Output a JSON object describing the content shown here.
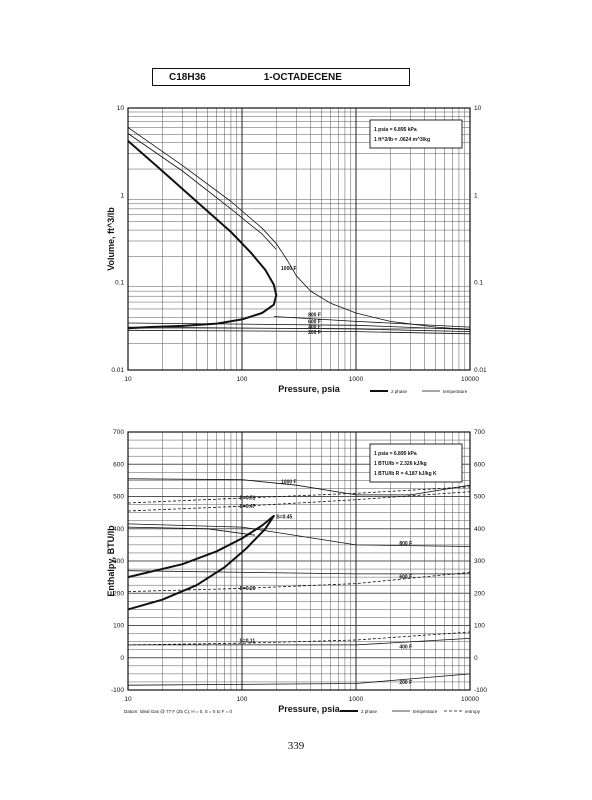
{
  "header": {
    "formula": "C18H36",
    "name": "1-OCTADECENE"
  },
  "page_number": "339",
  "chart_data": [
    {
      "type": "line",
      "title": "",
      "xlabel": "Pressure,  psia",
      "ylabel": "Volume, ft^3/lb",
      "xscale": "log",
      "yscale": "log",
      "xlim": [
        10,
        10000
      ],
      "ylim": [
        0.01,
        10
      ],
      "x_ticks": [
        "10",
        "100",
        "1000",
        "10000"
      ],
      "y_ticks": [
        "10",
        "1",
        "0.1",
        "0.01"
      ],
      "grid": true,
      "info_box": [
        "1 psia  =  6.895 kPa",
        "1 ft^3/lb  =  .0624 m^3/kg"
      ],
      "legend": [
        {
          "label": "2 phase",
          "style": "thick"
        },
        {
          "label": "temperature",
          "style": "thin"
        }
      ],
      "legend_position": "bottom-right",
      "series": [
        {
          "name": "2 phase",
          "style": "thick",
          "x": [
            10,
            20,
            40,
            80,
            120,
            160,
            190,
            200,
            190,
            150,
            100,
            60,
            30,
            15,
            10
          ],
          "y": [
            4.2,
            1.9,
            0.85,
            0.38,
            0.22,
            0.14,
            0.095,
            0.072,
            0.056,
            0.045,
            0.038,
            0.034,
            0.032,
            0.031,
            0.03
          ]
        },
        {
          "name": "1000 F",
          "style": "thin",
          "x": [
            10,
            30,
            80,
            150,
            200,
            250,
            300,
            400,
            600,
            1000,
            2000,
            5000,
            10000
          ],
          "y": [
            6.0,
            2.2,
            0.85,
            0.42,
            0.28,
            0.18,
            0.12,
            0.08,
            0.058,
            0.045,
            0.036,
            0.031,
            0.029
          ]
        },
        {
          "name": "",
          "style": "thin",
          "x": [
            10,
            30,
            80,
            150,
            200
          ],
          "y": [
            5.1,
            1.9,
            0.7,
            0.36,
            0.24
          ]
        },
        {
          "name": "800 F",
          "style": "thin",
          "x": [
            190,
            1000,
            10000
          ],
          "y": [
            0.041,
            0.036,
            0.031
          ]
        },
        {
          "name": "600 F",
          "style": "thin",
          "x": [
            10,
            1000,
            10000
          ],
          "y": [
            0.0345,
            0.0325,
            0.029
          ]
        },
        {
          "name": "400 F",
          "style": "thin",
          "x": [
            10,
            1000,
            10000
          ],
          "y": [
            0.031,
            0.0295,
            0.0275
          ]
        },
        {
          "name": "200 F",
          "style": "thin",
          "x": [
            10,
            1000,
            10000
          ],
          "y": [
            0.0285,
            0.0275,
            0.026
          ]
        }
      ],
      "annotations": [
        {
          "text": "1000 F",
          "x": 220,
          "y": 0.14
        },
        {
          "text": "800 F",
          "x": 380,
          "y": 0.041
        },
        {
          "text": "600 F",
          "x": 380,
          "y": 0.034
        },
        {
          "text": "400 F",
          "x": 380,
          "y": 0.03
        },
        {
          "text": "200 F",
          "x": 380,
          "y": 0.026
        }
      ]
    },
    {
      "type": "line",
      "title": "",
      "xlabel": "Pressure,  psia",
      "ylabel": "Enthalpy, BTU/lb",
      "xscale": "log",
      "yscale": "linear",
      "xlim": [
        10,
        10000
      ],
      "ylim": [
        -100,
        700
      ],
      "x_ticks": [
        "10",
        "100",
        "1000",
        "10000"
      ],
      "y_ticks": [
        "700",
        "600",
        "500",
        "400",
        "300",
        "200",
        "100",
        "0",
        "-100"
      ],
      "grid": true,
      "info_box": [
        "1 psia  =  6.895 kPa",
        "1 BTU/lb  =  2.326 kJ/kg",
        "1 BTU/lb R  =  4.187 kJ/kg K"
      ],
      "legend": [
        {
          "label": "2 phase",
          "style": "thick"
        },
        {
          "label": "temperature",
          "style": "thin"
        },
        {
          "label": "entropy",
          "style": "dashed"
        }
      ],
      "legend_position": "bottom-right",
      "footnote": "Datum: Ideal Gas @ 77 F (25 C);  H = 0,  S = 0 to F = 0",
      "series": [
        {
          "name": "2 phase",
          "style": "thick",
          "x": [
            10,
            30,
            60,
            100,
            150,
            190,
            160,
            110,
            70,
            40,
            20,
            10
          ],
          "y": [
            250,
            290,
            330,
            370,
            410,
            440,
            400,
            340,
            280,
            225,
            180,
            150
          ]
        },
        {
          "name": "1000 F",
          "style": "thin",
          "x": [
            10,
            100,
            300,
            1000,
            3000,
            10000
          ],
          "y": [
            555,
            552,
            535,
            505,
            505,
            535
          ]
        },
        {
          "name": "800 F",
          "style": "thin",
          "x": [
            10,
            100,
            190,
            1000,
            10000
          ],
          "y": [
            415,
            405,
            390,
            350,
            345
          ]
        },
        {
          "name": "",
          "style": "thin",
          "x": [
            10,
            50,
            130
          ],
          "y": [
            405,
            400,
            380
          ]
        },
        {
          "name": "600 F",
          "style": "thin",
          "x": [
            10,
            1000,
            10000
          ],
          "y": [
            270,
            260,
            260
          ]
        },
        {
          "name": "400 F",
          "style": "thin",
          "x": [
            10,
            1000,
            10000
          ],
          "y": [
            40,
            40,
            60
          ]
        },
        {
          "name": "200 F",
          "style": "thin",
          "x": [
            10,
            1000,
            10000
          ],
          "y": [
            -85,
            -80,
            -50
          ]
        },
        {
          "name": "S=0.51",
          "style": "dashed",
          "x": [
            10,
            100,
            1000,
            10000
          ],
          "y": [
            480,
            495,
            510,
            530
          ]
        },
        {
          "name": "S=0.47",
          "style": "dashed",
          "x": [
            10,
            100,
            1000,
            10000
          ],
          "y": [
            455,
            470,
            490,
            515
          ]
        },
        {
          "name": "S=0.26",
          "style": "dashed",
          "x": [
            10,
            100,
            1000,
            10000
          ],
          "y": [
            205,
            215,
            230,
            265
          ]
        },
        {
          "name": "S=0.11",
          "style": "dashed",
          "x": [
            10,
            100,
            1000,
            10000
          ],
          "y": [
            40,
            45,
            55,
            80
          ]
        }
      ],
      "annotations": [
        {
          "text": "1000 F",
          "x": 220,
          "y": 540
        },
        {
          "text": "S=0.51",
          "x": 95,
          "y": 490
        },
        {
          "text": "S=0.47",
          "x": 95,
          "y": 465
        },
        {
          "text": "S=0.45",
          "x": 200,
          "y": 432
        },
        {
          "text": "800 F",
          "x": 2400,
          "y": 350
        },
        {
          "text": "S=0.26",
          "x": 95,
          "y": 210
        },
        {
          "text": "600 F",
          "x": 2400,
          "y": 245
        },
        {
          "text": "S=0.11",
          "x": 95,
          "y": 48
        },
        {
          "text": "400 F",
          "x": 2400,
          "y": 28
        },
        {
          "text": "200 F",
          "x": 2400,
          "y": -82
        }
      ]
    }
  ]
}
